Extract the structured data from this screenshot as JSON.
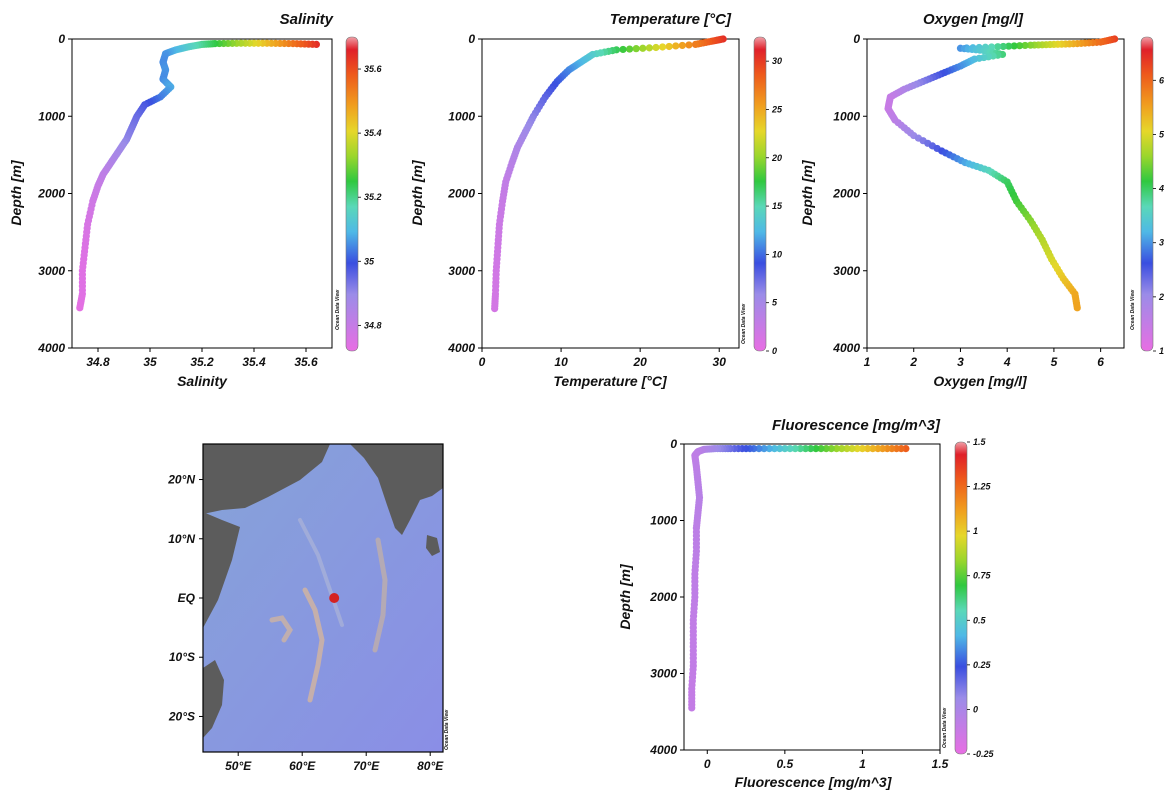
{
  "watermark": "Ocean Data View",
  "chart_data": [
    {
      "id": "salinity",
      "type": "scatter",
      "title": "Salinity",
      "xlabel": "Salinity",
      "ylabel": "Depth [m]",
      "xlim": [
        34.7,
        35.7
      ],
      "ylim": [
        4000,
        0
      ],
      "xticks": [
        {
          "v": 34.8,
          "t": "34.8"
        },
        {
          "v": 35,
          "t": "35"
        },
        {
          "v": 35.2,
          "t": "35.2"
        },
        {
          "v": 35.4,
          "t": "35.4"
        },
        {
          "v": 35.6,
          "t": "35.6"
        }
      ],
      "yticks": [
        {
          "v": 0,
          "t": "0"
        },
        {
          "v": 1000,
          "t": "1000"
        },
        {
          "v": 2000,
          "t": "2000"
        },
        {
          "v": 3000,
          "t": "3000"
        },
        {
          "v": 4000,
          "t": "4000"
        }
      ],
      "colorbar": {
        "min": 34.72,
        "max": 35.7,
        "ticks": [
          {
            "v": 34.8,
            "t": "34.8"
          },
          {
            "v": 35,
            "t": "35"
          },
          {
            "v": 35.2,
            "t": "35.2"
          },
          {
            "v": 35.4,
            "t": "35.4"
          },
          {
            "v": 35.6,
            "t": "35.6"
          }
        ]
      },
      "profile": [
        {
          "x": 35.64,
          "y": 70
        },
        {
          "x": 35.55,
          "y": 60
        },
        {
          "x": 35.45,
          "y": 55
        },
        {
          "x": 35.35,
          "y": 55
        },
        {
          "x": 35.25,
          "y": 60
        },
        {
          "x": 35.2,
          "y": 70
        },
        {
          "x": 35.15,
          "y": 100
        },
        {
          "x": 35.1,
          "y": 140
        },
        {
          "x": 35.06,
          "y": 190
        },
        {
          "x": 35.05,
          "y": 300
        },
        {
          "x": 35.06,
          "y": 400
        },
        {
          "x": 35.05,
          "y": 520
        },
        {
          "x": 35.08,
          "y": 620
        },
        {
          "x": 35.04,
          "y": 750
        },
        {
          "x": 34.98,
          "y": 850
        },
        {
          "x": 34.95,
          "y": 1000
        },
        {
          "x": 34.93,
          "y": 1150
        },
        {
          "x": 34.91,
          "y": 1300
        },
        {
          "x": 34.88,
          "y": 1450
        },
        {
          "x": 34.85,
          "y": 1600
        },
        {
          "x": 34.82,
          "y": 1750
        },
        {
          "x": 34.8,
          "y": 1900
        },
        {
          "x": 34.78,
          "y": 2100
        },
        {
          "x": 34.76,
          "y": 2400
        },
        {
          "x": 34.75,
          "y": 2700
        },
        {
          "x": 34.74,
          "y": 3000
        },
        {
          "x": 34.74,
          "y": 3300
        },
        {
          "x": 34.73,
          "y": 3480
        }
      ]
    },
    {
      "id": "temperature",
      "type": "scatter",
      "title": "Temperature [°C]",
      "xlabel": "Temperature [°C]",
      "ylabel": "Depth [m]",
      "xlim": [
        0,
        32.5
      ],
      "ylim": [
        4000,
        0
      ],
      "xticks": [
        {
          "v": 0,
          "t": "0"
        },
        {
          "v": 10,
          "t": "10"
        },
        {
          "v": 20,
          "t": "20"
        },
        {
          "v": 30,
          "t": "30"
        }
      ],
      "yticks": [
        {
          "v": 0,
          "t": "0"
        },
        {
          "v": 1000,
          "t": "1000"
        },
        {
          "v": 2000,
          "t": "2000"
        },
        {
          "v": 3000,
          "t": "3000"
        },
        {
          "v": 4000,
          "t": "4000"
        }
      ],
      "colorbar": {
        "min": 0,
        "max": 32.5,
        "ticks": [
          {
            "v": 0,
            "t": "0"
          },
          {
            "v": 5,
            "t": "5"
          },
          {
            "v": 10,
            "t": "10"
          },
          {
            "v": 15,
            "t": "15"
          },
          {
            "v": 20,
            "t": "20"
          },
          {
            "v": 25,
            "t": "25"
          },
          {
            "v": 30,
            "t": "30"
          }
        ]
      },
      "profile": [
        {
          "x": 30.5,
          "y": 0
        },
        {
          "x": 29,
          "y": 30
        },
        {
          "x": 27,
          "y": 70
        },
        {
          "x": 22,
          "y": 110
        },
        {
          "x": 17,
          "y": 140
        },
        {
          "x": 14,
          "y": 200
        },
        {
          "x": 12.5,
          "y": 300
        },
        {
          "x": 11,
          "y": 400
        },
        {
          "x": 9.5,
          "y": 550
        },
        {
          "x": 8,
          "y": 750
        },
        {
          "x": 6.5,
          "y": 1000
        },
        {
          "x": 5.5,
          "y": 1200
        },
        {
          "x": 4.5,
          "y": 1400
        },
        {
          "x": 3.8,
          "y": 1600
        },
        {
          "x": 3,
          "y": 1850
        },
        {
          "x": 2.6,
          "y": 2100
        },
        {
          "x": 2.2,
          "y": 2400
        },
        {
          "x": 2,
          "y": 2700
        },
        {
          "x": 1.8,
          "y": 3000
        },
        {
          "x": 1.7,
          "y": 3300
        },
        {
          "x": 1.6,
          "y": 3490
        }
      ]
    },
    {
      "id": "oxygen",
      "type": "scatter",
      "title": "Oxygen [mg/l]",
      "xlabel": "Oxygen [mg/l]",
      "ylabel": "Depth [m]",
      "xlim": [
        1,
        6.5
      ],
      "ylim": [
        4000,
        0
      ],
      "xticks": [
        {
          "v": 1,
          "t": "1"
        },
        {
          "v": 2,
          "t": "2"
        },
        {
          "v": 3,
          "t": "3"
        },
        {
          "v": 4,
          "t": "4"
        },
        {
          "v": 5,
          "t": "5"
        },
        {
          "v": 6,
          "t": "6"
        }
      ],
      "yticks": [
        {
          "v": 0,
          "t": "0"
        },
        {
          "v": 1000,
          "t": "1000"
        },
        {
          "v": 2000,
          "t": "2000"
        },
        {
          "v": 3000,
          "t": "3000"
        },
        {
          "v": 4000,
          "t": "4000"
        }
      ],
      "colorbar": {
        "min": 1,
        "max": 6.8,
        "ticks": [
          {
            "v": 1,
            "t": "1"
          },
          {
            "v": 2,
            "t": "2"
          },
          {
            "v": 3,
            "t": "3"
          },
          {
            "v": 4,
            "t": "4"
          },
          {
            "v": 5,
            "t": "5"
          },
          {
            "v": 6,
            "t": "6"
          }
        ]
      },
      "profile": [
        {
          "x": 6.3,
          "y": 0
        },
        {
          "x": 6,
          "y": 40
        },
        {
          "x": 5.5,
          "y": 60
        },
        {
          "x": 5,
          "y": 70
        },
        {
          "x": 4.5,
          "y": 80
        },
        {
          "x": 3.8,
          "y": 100
        },
        {
          "x": 3,
          "y": 120
        },
        {
          "x": 3.5,
          "y": 150
        },
        {
          "x": 3.9,
          "y": 200
        },
        {
          "x": 3.3,
          "y": 260
        },
        {
          "x": 3,
          "y": 350
        },
        {
          "x": 2.6,
          "y": 450
        },
        {
          "x": 2.2,
          "y": 550
        },
        {
          "x": 1.8,
          "y": 650
        },
        {
          "x": 1.5,
          "y": 750
        },
        {
          "x": 1.45,
          "y": 900
        },
        {
          "x": 1.6,
          "y": 1050
        },
        {
          "x": 2,
          "y": 1250
        },
        {
          "x": 2.6,
          "y": 1450
        },
        {
          "x": 3.1,
          "y": 1600
        },
        {
          "x": 3.6,
          "y": 1700
        },
        {
          "x": 4,
          "y": 1850
        },
        {
          "x": 4.2,
          "y": 2100
        },
        {
          "x": 4.5,
          "y": 2350
        },
        {
          "x": 4.75,
          "y": 2600
        },
        {
          "x": 4.95,
          "y": 2850
        },
        {
          "x": 5.2,
          "y": 3100
        },
        {
          "x": 5.45,
          "y": 3300
        },
        {
          "x": 5.5,
          "y": 3480
        }
      ]
    },
    {
      "id": "fluorescence",
      "type": "scatter",
      "title": "Fluorescence [mg/m^3]",
      "xlabel": "Fluorescence [mg/m^3]",
      "ylabel": "Depth [m]",
      "xlim": [
        -0.15,
        1.5
      ],
      "ylim": [
        4000,
        0
      ],
      "xticks": [
        {
          "v": 0,
          "t": "0"
        },
        {
          "v": 0.5,
          "t": "0.5"
        },
        {
          "v": 1,
          "t": "1"
        },
        {
          "v": 1.5,
          "t": "1.5"
        }
      ],
      "yticks": [
        {
          "v": 0,
          "t": "0"
        },
        {
          "v": 1000,
          "t": "1000"
        },
        {
          "v": 2000,
          "t": "2000"
        },
        {
          "v": 3000,
          "t": "3000"
        },
        {
          "v": 4000,
          "t": "4000"
        }
      ],
      "colorbar": {
        "min": -0.25,
        "max": 1.5,
        "ticks": [
          {
            "v": -0.25,
            "t": "-0.25"
          },
          {
            "v": 0,
            "t": "0"
          },
          {
            "v": 0.25,
            "t": "0.25"
          },
          {
            "v": 0.5,
            "t": "0.5"
          },
          {
            "v": 0.75,
            "t": "0.75"
          },
          {
            "v": 1,
            "t": "1"
          },
          {
            "v": 1.25,
            "t": "1.25"
          },
          {
            "v": 1.5,
            "t": "1.5"
          }
        ]
      },
      "profile": [
        {
          "x": 1.28,
          "y": 60
        },
        {
          "x": 1.1,
          "y": 60
        },
        {
          "x": 0.9,
          "y": 60
        },
        {
          "x": 0.7,
          "y": 60
        },
        {
          "x": 0.5,
          "y": 60
        },
        {
          "x": 0.3,
          "y": 60
        },
        {
          "x": 0.15,
          "y": 60
        },
        {
          "x": 0.05,
          "y": 60
        },
        {
          "x": -0.02,
          "y": 70
        },
        {
          "x": -0.06,
          "y": 100
        },
        {
          "x": -0.08,
          "y": 150
        },
        {
          "x": -0.07,
          "y": 300
        },
        {
          "x": -0.06,
          "y": 500
        },
        {
          "x": -0.05,
          "y": 700
        },
        {
          "x": -0.06,
          "y": 900
        },
        {
          "x": -0.07,
          "y": 1100
        },
        {
          "x": -0.07,
          "y": 1400
        },
        {
          "x": -0.08,
          "y": 1700
        },
        {
          "x": -0.08,
          "y": 2000
        },
        {
          "x": -0.09,
          "y": 2300
        },
        {
          "x": -0.09,
          "y": 2600
        },
        {
          "x": -0.09,
          "y": 2900
        },
        {
          "x": -0.1,
          "y": 3200
        },
        {
          "x": -0.1,
          "y": 3450
        }
      ]
    }
  ],
  "map": {
    "xticks": [
      "50°E",
      "60°E",
      "70°E",
      "80°E"
    ],
    "yticks": [
      "20°N",
      "10°N",
      "EQ",
      "10°S",
      "20°S"
    ],
    "station": {
      "lon": 65,
      "lat": 0
    }
  }
}
